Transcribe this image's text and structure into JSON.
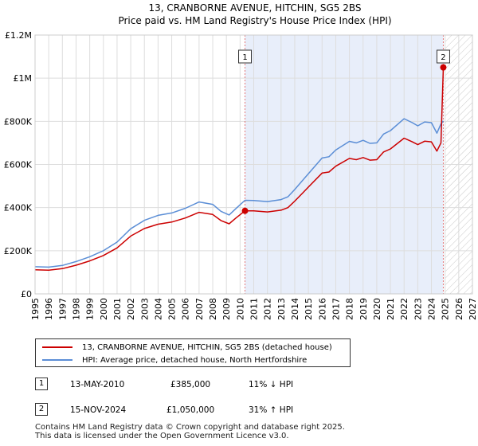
{
  "chart_data": {
    "type": "line",
    "title": "13, CRANBORNE AVENUE, HITCHIN, SG5 2BS",
    "subtitle": "Price paid vs. HM Land Registry's House Price Index (HPI)",
    "xlim": [
      1995,
      2027
    ],
    "ylim": [
      0,
      1200000
    ],
    "y_ticks": [
      {
        "value": 0,
        "label": "£0"
      },
      {
        "value": 200000,
        "label": "£200K"
      },
      {
        "value": 400000,
        "label": "£400K"
      },
      {
        "value": 600000,
        "label": "£600K"
      },
      {
        "value": 800000,
        "label": "£800K"
      },
      {
        "value": 1000000,
        "label": "£1M"
      },
      {
        "value": 1200000,
        "label": "£1.2M"
      }
    ],
    "x_ticks": [
      "1995",
      "1996",
      "1997",
      "1998",
      "1999",
      "2000",
      "2001",
      "2002",
      "2003",
      "2004",
      "2005",
      "2006",
      "2007",
      "2008",
      "2009",
      "2010",
      "2011",
      "2012",
      "2013",
      "2014",
      "2015",
      "2016",
      "2017",
      "2018",
      "2019",
      "2020",
      "2021",
      "2022",
      "2023",
      "2024",
      "2025",
      "2026",
      "2027"
    ],
    "shade_start": 2010.36,
    "shade_end": 2024.87,
    "hatch_start": 2025.0,
    "series": [
      {
        "name": "13, CRANBORNE AVENUE, HITCHIN, SG5 2BS (detached house)",
        "color": "#cc0000",
        "x": [
          1995,
          1996,
          1997,
          1998,
          1999,
          2000,
          2001,
          2002,
          2003,
          2004,
          2005,
          2006,
          2007,
          2008,
          2008.6,
          2009.2,
          2009.7,
          2010.36,
          2011,
          2012,
          2013,
          2013.5,
          2014,
          2015,
          2016,
          2016.5,
          2017,
          2018,
          2018.5,
          2019,
          2019.5,
          2020,
          2020.5,
          2021,
          2022,
          2022.6,
          2023,
          2023.5,
          2024,
          2024.4,
          2024.7,
          2024.87
        ],
        "y": [
          112000,
          110000,
          117000,
          133000,
          153000,
          178000,
          213000,
          268000,
          303000,
          323000,
          333000,
          352000,
          378000,
          368000,
          340000,
          325000,
          352000,
          385000,
          385000,
          380000,
          388000,
          400000,
          430000,
          495000,
          560000,
          565000,
          592000,
          628000,
          622000,
          632000,
          620000,
          622000,
          658000,
          672000,
          722000,
          705000,
          692000,
          708000,
          705000,
          662000,
          700000,
          1050000
        ]
      },
      {
        "name": "HPI: Average price, detached house, North Hertfordshire",
        "color": "#5b8ed6",
        "x": [
          1995,
          1996,
          1997,
          1998,
          1999,
          2000,
          2001,
          2002,
          2003,
          2004,
          2005,
          2006,
          2007,
          2008,
          2008.6,
          2009.2,
          2009.7,
          2010.36,
          2011,
          2012,
          2013,
          2013.5,
          2014,
          2015,
          2016,
          2016.5,
          2017,
          2018,
          2018.5,
          2019,
          2019.5,
          2020,
          2020.5,
          2021,
          2022,
          2022.6,
          2023,
          2023.5,
          2024,
          2024.4,
          2024.7,
          2024.87
        ],
        "y": [
          126000,
          124000,
          132000,
          150000,
          172000,
          200000,
          240000,
          302000,
          341000,
          364000,
          375000,
          397000,
          426000,
          415000,
          383000,
          366000,
          396000,
          434000,
          433000,
          428000,
          437000,
          450000,
          484000,
          557000,
          630000,
          636000,
          667000,
          707000,
          700000,
          712000,
          698000,
          700000,
          741000,
          757000,
          812000,
          794000,
          779000,
          797000,
          794000,
          745000,
          788000,
          802000
        ]
      }
    ],
    "transactions": [
      {
        "id": "1",
        "x": 2010.36,
        "y": 385000
      },
      {
        "id": "2",
        "x": 2024.87,
        "y": 1050000
      }
    ]
  },
  "legend": {
    "property": "13, CRANBORNE AVENUE, HITCHIN, SG5 2BS (detached house)",
    "hpi": "HPI: Average price, detached house, North Hertfordshire"
  },
  "table": [
    {
      "id": "1",
      "date": "13-MAY-2010",
      "price": "£385,000",
      "hpi": "11% ↓ HPI"
    },
    {
      "id": "2",
      "date": "15-NOV-2024",
      "price": "£1,050,000",
      "hpi": "31% ↑ HPI"
    }
  ],
  "footer": {
    "line1": "Contains HM Land Registry data © Crown copyright and database right 2025.",
    "line2": "This data is licensed under the Open Government Licence v3.0."
  }
}
